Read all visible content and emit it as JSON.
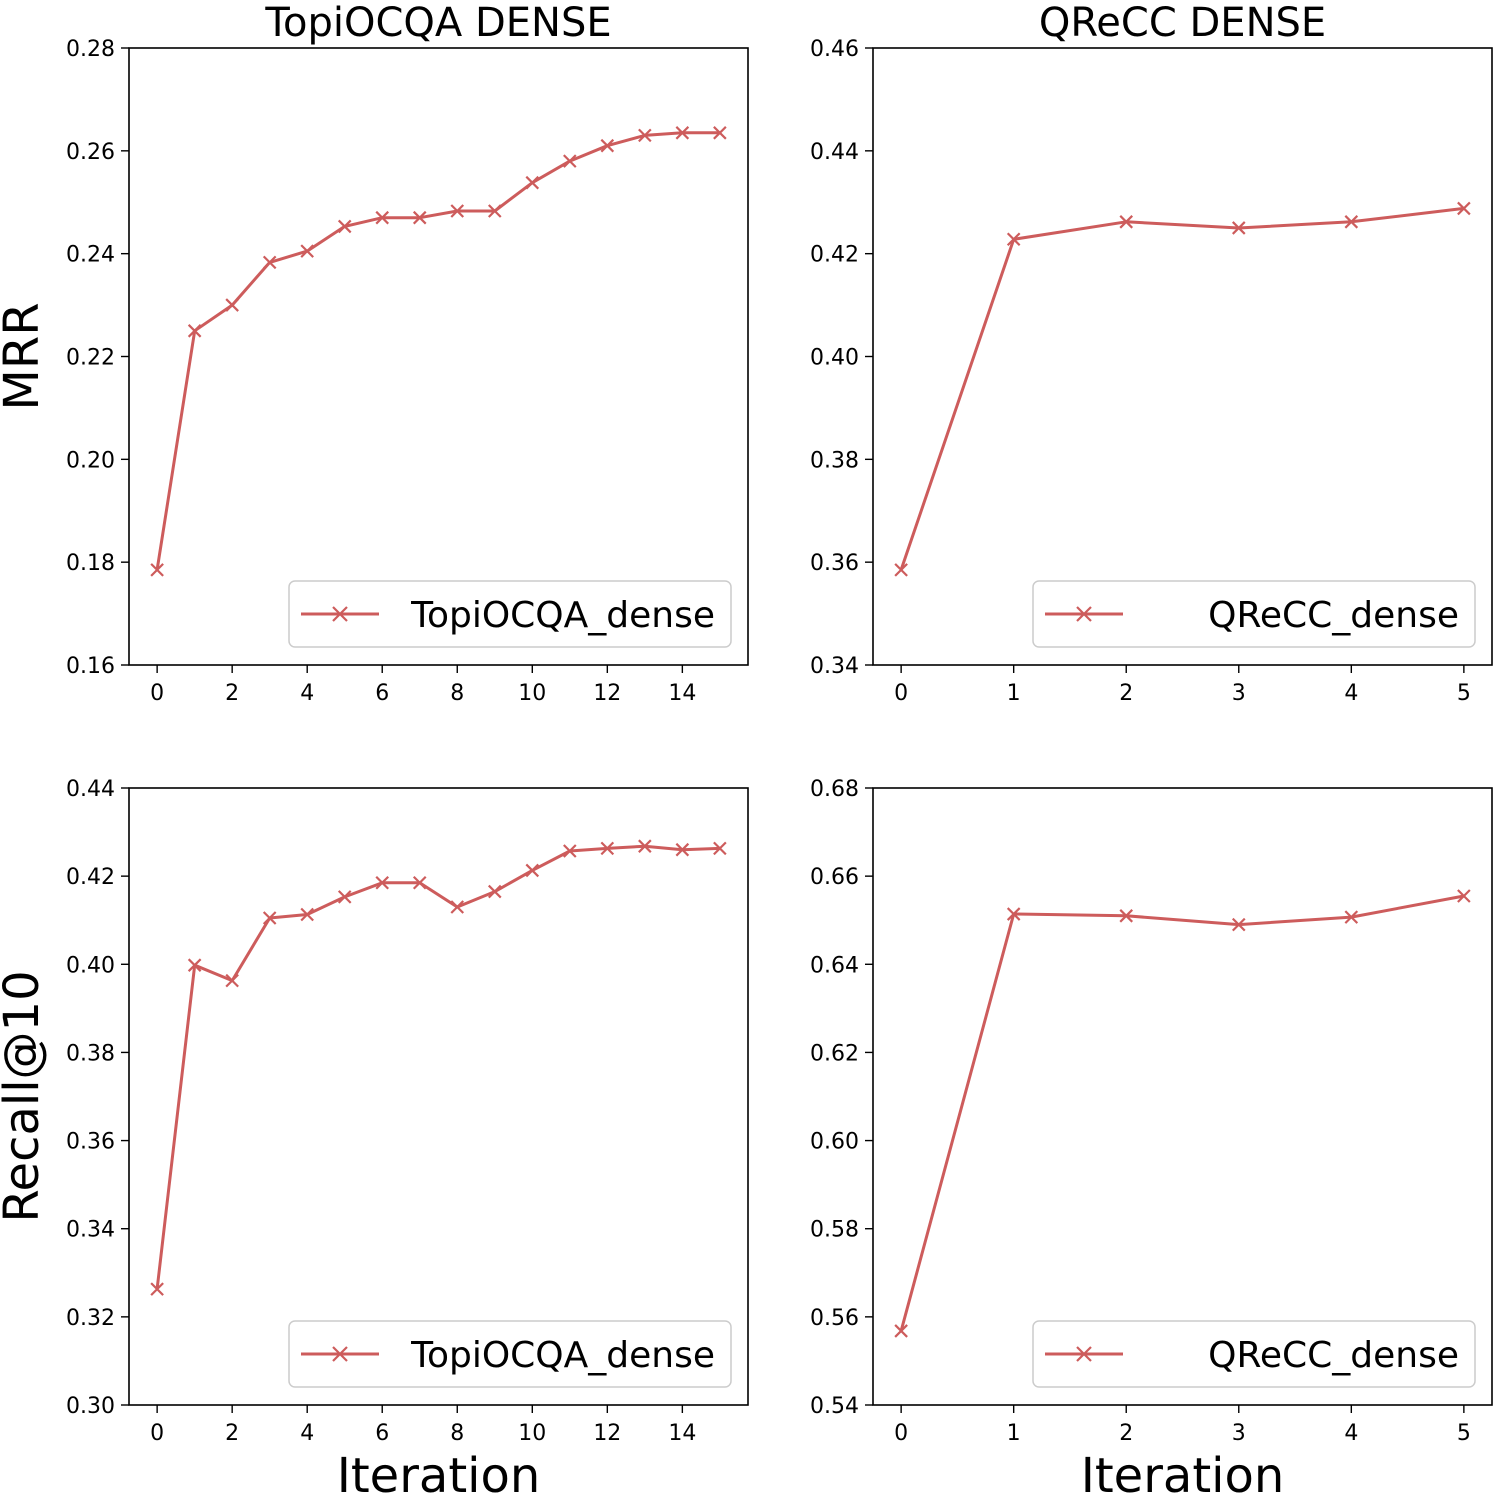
{
  "chart_data": [
    {
      "type": "line",
      "title": "TopiOCQA DENSE",
      "xlabel": "",
      "ylabel": "MRR",
      "xlim": [
        -0.75,
        15.75
      ],
      "ylim": [
        0.16,
        0.28
      ],
      "xticks": [
        0,
        2,
        4,
        6,
        8,
        10,
        12,
        14
      ],
      "xtick_labels": [
        "0",
        "2",
        "4",
        "6",
        "8",
        "10",
        "12",
        "14"
      ],
      "yticks": [
        0.16,
        0.18,
        0.2,
        0.22,
        0.24,
        0.26,
        0.28
      ],
      "ytick_labels": [
        "0.16",
        "0.18",
        "0.20",
        "0.22",
        "0.24",
        "0.26",
        "0.28"
      ],
      "legend_position": "bottom-right",
      "series": [
        {
          "name": "TopiOCQA_dense",
          "color": "#cd5c5c",
          "marker": "x",
          "x": [
            0,
            1,
            2,
            3,
            4,
            5,
            6,
            7,
            8,
            9,
            10,
            11,
            12,
            13,
            14,
            15
          ],
          "values": [
            0.1785,
            0.225,
            0.23,
            0.2383,
            0.2405,
            0.2453,
            0.247,
            0.247,
            0.2483,
            0.2483,
            0.2538,
            0.258,
            0.261,
            0.263,
            0.2635,
            0.2635
          ]
        }
      ]
    },
    {
      "type": "line",
      "title": "QReCC DENSE",
      "xlabel": "",
      "ylabel": "",
      "xlim": [
        -0.25,
        5.25
      ],
      "ylim": [
        0.34,
        0.46
      ],
      "xticks": [
        0,
        1,
        2,
        3,
        4,
        5
      ],
      "xtick_labels": [
        "0",
        "1",
        "2",
        "3",
        "4",
        "5"
      ],
      "yticks": [
        0.34,
        0.36,
        0.38,
        0.4,
        0.42,
        0.44,
        0.46
      ],
      "ytick_labels": [
        "0.34",
        "0.36",
        "0.38",
        "0.40",
        "0.42",
        "0.44",
        "0.46"
      ],
      "legend_position": "bottom-right",
      "series": [
        {
          "name": "QReCC_dense",
          "color": "#cd5c5c",
          "marker": "x",
          "x": [
            0,
            1,
            2,
            3,
            4,
            5
          ],
          "values": [
            0.3585,
            0.4228,
            0.4262,
            0.425,
            0.4262,
            0.4288
          ]
        }
      ]
    },
    {
      "type": "line",
      "title": "",
      "xlabel": "Iteration",
      "ylabel": "Recall@10",
      "xlim": [
        -0.75,
        15.75
      ],
      "ylim": [
        0.3,
        0.44
      ],
      "xticks": [
        0,
        2,
        4,
        6,
        8,
        10,
        12,
        14
      ],
      "xtick_labels": [
        "0",
        "2",
        "4",
        "6",
        "8",
        "10",
        "12",
        "14"
      ],
      "yticks": [
        0.3,
        0.32,
        0.34,
        0.36,
        0.38,
        0.4,
        0.42,
        0.44
      ],
      "ytick_labels": [
        "0.30",
        "0.32",
        "0.34",
        "0.36",
        "0.38",
        "0.40",
        "0.42",
        "0.44"
      ],
      "legend_position": "bottom-right",
      "series": [
        {
          "name": "TopiOCQA_dense",
          "color": "#cd5c5c",
          "marker": "x",
          "x": [
            0,
            1,
            2,
            3,
            4,
            5,
            6,
            7,
            8,
            9,
            10,
            11,
            12,
            13,
            14,
            15
          ],
          "values": [
            0.3263,
            0.3998,
            0.3963,
            0.4105,
            0.4113,
            0.4153,
            0.4185,
            0.4185,
            0.413,
            0.4165,
            0.4213,
            0.4257,
            0.4263,
            0.4268,
            0.426,
            0.4263
          ]
        }
      ]
    },
    {
      "type": "line",
      "title": "",
      "xlabel": "Iteration",
      "ylabel": "",
      "xlim": [
        -0.25,
        5.25
      ],
      "ylim": [
        0.54,
        0.68
      ],
      "xticks": [
        0,
        1,
        2,
        3,
        4,
        5
      ],
      "xtick_labels": [
        "0",
        "1",
        "2",
        "3",
        "4",
        "5"
      ],
      "yticks": [
        0.54,
        0.56,
        0.58,
        0.6,
        0.62,
        0.64,
        0.66,
        0.68
      ],
      "ytick_labels": [
        "0.54",
        "0.56",
        "0.58",
        "0.60",
        "0.62",
        "0.64",
        "0.66",
        "0.68"
      ],
      "legend_position": "bottom-right",
      "series": [
        {
          "name": "QReCC_dense",
          "color": "#cd5c5c",
          "marker": "x",
          "x": [
            0,
            1,
            2,
            3,
            4,
            5
          ],
          "values": [
            0.5568,
            0.6514,
            0.651,
            0.649,
            0.6507,
            0.6555
          ]
        }
      ]
    }
  ]
}
